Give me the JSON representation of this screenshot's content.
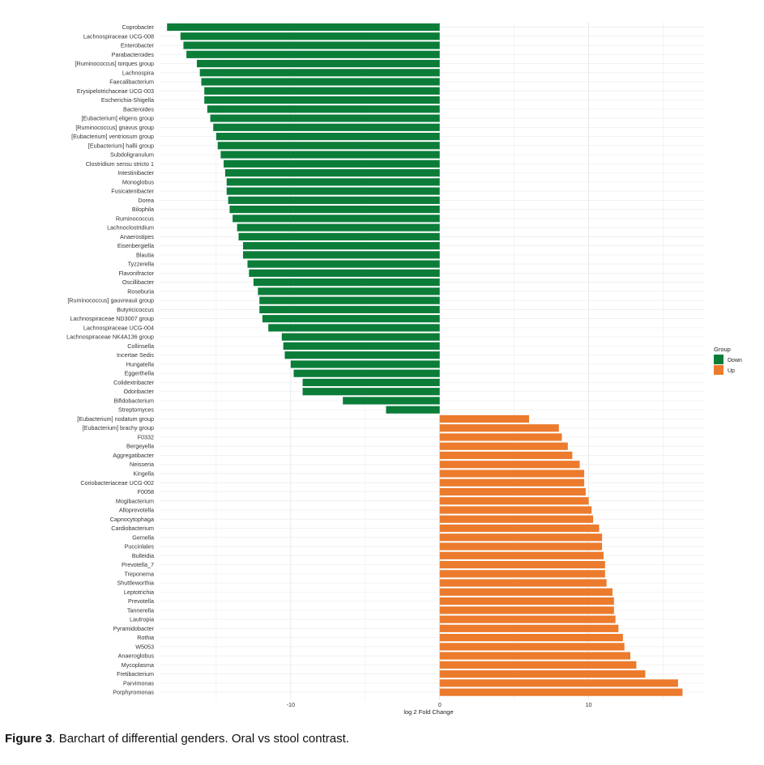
{
  "chart_data": {
    "type": "bar",
    "orientation": "horizontal",
    "xlabel": "log 2 Fold Change",
    "ylabel": "",
    "xlim": [
      -18.8,
      17.8
    ],
    "xticks": [
      -10,
      0,
      10
    ],
    "grid": true,
    "legend": {
      "title": "Group",
      "position": "right",
      "entries": [
        "Down",
        "Up"
      ]
    },
    "colors": {
      "Down": "#0b7d39",
      "Up": "#ec7b2d"
    },
    "categories": [
      "Coprobacter",
      "Lachnospiraceae UCG-008",
      "Enterobacter",
      "Parabacteroides",
      "[Ruminococcus] torques group",
      "Lachnospira",
      "Faecalibacterium",
      "Erysipelotrichaceae UCG-003",
      "Escherichia-Shigella",
      "Bacteroides",
      "[Eubacterium] eligens group",
      "[Ruminococcus] gnavus group",
      "[Eubacterium] ventriosum group",
      "[Eubacterium] hallii group",
      "Subdoligranulum",
      "Clostridium sensu stricto 1",
      "Intestinibacter",
      "Monoglobus",
      "Fusicatenibacter",
      "Dorea",
      "Bilophila",
      "Ruminococcus",
      "Lachnoclostridium",
      "Anaerostipes",
      "Eisenbergiella",
      "Blautia",
      "Tyzzerella",
      "Flavonifractor",
      "Oscillibacter",
      "Roseburia",
      "[Ruminococcus] gauvreauii group",
      "Butyricicoccus",
      "Lachnospiraceae ND3007 group",
      "Lachnospiraceae UCG-004",
      "Lachnospiraceae NK4A136 group",
      "Collinsella",
      "Incertae Sedis",
      "Hungatella",
      "Eggerthella",
      "Colidextribacter",
      "Odoribacter",
      "Bifidobacterium",
      "Streptomyces",
      "[Eubacterium] nodatum group",
      "[Eubacterium] brachy group",
      "F0332",
      "Bergeyella",
      "Aggregatibacter",
      "Neisseria",
      "Kingella",
      "Coriobacteriaceae UCG-002",
      "F0058",
      "Mogibacterium",
      "Alloprevotella",
      "Capnocytophaga",
      "Cardiobacterium",
      "Gemella",
      "Puccinlales",
      "Bulleidia",
      "Prevotella_7",
      "Treponema",
      "Shuttleworthia",
      "Leptotrichia",
      "Prevotella",
      "Tannerella",
      "Lautropia",
      "Pyramidobacter",
      "Rothia",
      "W5053",
      "Anaeroglobus",
      "Mycoplasma",
      "Fretibacterium",
      "Parvimonas",
      "Porphyromonas"
    ],
    "values": [
      -18.3,
      -17.4,
      -17.2,
      -17.0,
      -16.3,
      -16.1,
      -16.0,
      -15.8,
      -15.8,
      -15.6,
      -15.4,
      -15.2,
      -15.0,
      -14.9,
      -14.7,
      -14.5,
      -14.4,
      -14.3,
      -14.3,
      -14.2,
      -14.1,
      -13.9,
      -13.6,
      -13.5,
      -13.2,
      -13.2,
      -12.9,
      -12.8,
      -12.5,
      -12.2,
      -12.1,
      -12.1,
      -11.9,
      -11.5,
      -10.6,
      -10.5,
      -10.4,
      -10.0,
      -9.8,
      -9.2,
      -9.2,
      -6.5,
      -3.6,
      6.0,
      8.0,
      8.2,
      8.6,
      8.9,
      9.4,
      9.7,
      9.7,
      9.8,
      10.0,
      10.2,
      10.3,
      10.7,
      10.9,
      10.9,
      11.0,
      11.1,
      11.1,
      11.2,
      11.6,
      11.7,
      11.7,
      11.8,
      12.0,
      12.3,
      12.4,
      12.8,
      13.2,
      13.8,
      16.0,
      16.3
    ],
    "groups": [
      "Down",
      "Down",
      "Down",
      "Down",
      "Down",
      "Down",
      "Down",
      "Down",
      "Down",
      "Down",
      "Down",
      "Down",
      "Down",
      "Down",
      "Down",
      "Down",
      "Down",
      "Down",
      "Down",
      "Down",
      "Down",
      "Down",
      "Down",
      "Down",
      "Down",
      "Down",
      "Down",
      "Down",
      "Down",
      "Down",
      "Down",
      "Down",
      "Down",
      "Down",
      "Down",
      "Down",
      "Down",
      "Down",
      "Down",
      "Down",
      "Down",
      "Down",
      "Down",
      "Up",
      "Up",
      "Up",
      "Up",
      "Up",
      "Up",
      "Up",
      "Up",
      "Up",
      "Up",
      "Up",
      "Up",
      "Up",
      "Up",
      "Up",
      "Up",
      "Up",
      "Up",
      "Up",
      "Up",
      "Up",
      "Up",
      "Up",
      "Up",
      "Up",
      "Up",
      "Up",
      "Up",
      "Up",
      "Up",
      "Up"
    ]
  },
  "caption": {
    "label": "Figure 3",
    "text": ". Barchart of differential genders. Oral vs stool contrast."
  }
}
